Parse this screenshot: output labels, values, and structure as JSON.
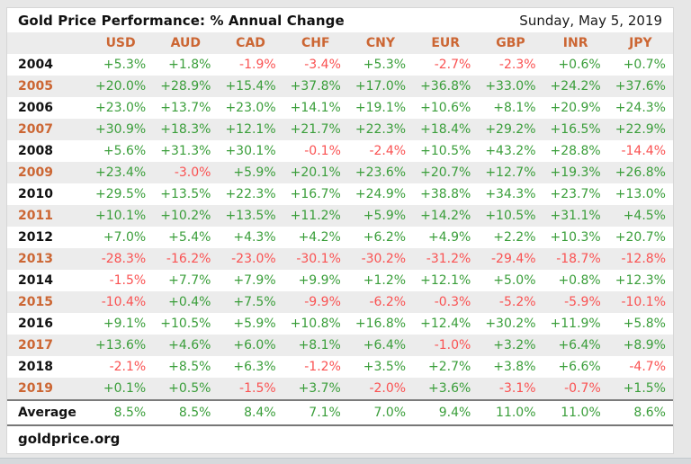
{
  "header": {
    "title": "Gold Price Performance: % Annual Change",
    "date": "Sunday, May 5, 2019"
  },
  "table": {
    "currencies": [
      "USD",
      "AUD",
      "CAD",
      "CHF",
      "CNY",
      "EUR",
      "GBP",
      "INR",
      "JPY"
    ],
    "rows": [
      {
        "year": "2004",
        "values": [
          "+5.3%",
          "+1.8%",
          "-1.9%",
          "-3.4%",
          "+5.3%",
          "-2.7%",
          "-2.3%",
          "+0.6%",
          "+0.7%"
        ]
      },
      {
        "year": "2005",
        "values": [
          "+20.0%",
          "+28.9%",
          "+15.4%",
          "+37.8%",
          "+17.0%",
          "+36.8%",
          "+33.0%",
          "+24.2%",
          "+37.6%"
        ]
      },
      {
        "year": "2006",
        "values": [
          "+23.0%",
          "+13.7%",
          "+23.0%",
          "+14.1%",
          "+19.1%",
          "+10.6%",
          "+8.1%",
          "+20.9%",
          "+24.3%"
        ]
      },
      {
        "year": "2007",
        "values": [
          "+30.9%",
          "+18.3%",
          "+12.1%",
          "+21.7%",
          "+22.3%",
          "+18.4%",
          "+29.2%",
          "+16.5%",
          "+22.9%"
        ]
      },
      {
        "year": "2008",
        "values": [
          "+5.6%",
          "+31.3%",
          "+30.1%",
          "-0.1%",
          "-2.4%",
          "+10.5%",
          "+43.2%",
          "+28.8%",
          "-14.4%"
        ]
      },
      {
        "year": "2009",
        "values": [
          "+23.4%",
          "-3.0%",
          "+5.9%",
          "+20.1%",
          "+23.6%",
          "+20.7%",
          "+12.7%",
          "+19.3%",
          "+26.8%"
        ]
      },
      {
        "year": "2010",
        "values": [
          "+29.5%",
          "+13.5%",
          "+22.3%",
          "+16.7%",
          "+24.9%",
          "+38.8%",
          "+34.3%",
          "+23.7%",
          "+13.0%"
        ]
      },
      {
        "year": "2011",
        "values": [
          "+10.1%",
          "+10.2%",
          "+13.5%",
          "+11.2%",
          "+5.9%",
          "+14.2%",
          "+10.5%",
          "+31.1%",
          "+4.5%"
        ]
      },
      {
        "year": "2012",
        "values": [
          "+7.0%",
          "+5.4%",
          "+4.3%",
          "+4.2%",
          "+6.2%",
          "+4.9%",
          "+2.2%",
          "+10.3%",
          "+20.7%"
        ]
      },
      {
        "year": "2013",
        "values": [
          "-28.3%",
          "-16.2%",
          "-23.0%",
          "-30.1%",
          "-30.2%",
          "-31.2%",
          "-29.4%",
          "-18.7%",
          "-12.8%"
        ]
      },
      {
        "year": "2014",
        "values": [
          "-1.5%",
          "+7.7%",
          "+7.9%",
          "+9.9%",
          "+1.2%",
          "+12.1%",
          "+5.0%",
          "+0.8%",
          "+12.3%"
        ]
      },
      {
        "year": "2015",
        "values": [
          "-10.4%",
          "+0.4%",
          "+7.5%",
          "-9.9%",
          "-6.2%",
          "-0.3%",
          "-5.2%",
          "-5.9%",
          "-10.1%"
        ]
      },
      {
        "year": "2016",
        "values": [
          "+9.1%",
          "+10.5%",
          "+5.9%",
          "+10.8%",
          "+16.8%",
          "+12.4%",
          "+30.2%",
          "+11.9%",
          "+5.8%"
        ]
      },
      {
        "year": "2017",
        "values": [
          "+13.6%",
          "+4.6%",
          "+6.0%",
          "+8.1%",
          "+6.4%",
          "-1.0%",
          "+3.2%",
          "+6.4%",
          "+8.9%"
        ]
      },
      {
        "year": "2018",
        "values": [
          "-2.1%",
          "+8.5%",
          "+6.3%",
          "-1.2%",
          "+3.5%",
          "+2.7%",
          "+3.8%",
          "+6.6%",
          "-4.7%"
        ]
      },
      {
        "year": "2019",
        "values": [
          "+0.1%",
          "+0.5%",
          "-1.5%",
          "+3.7%",
          "-2.0%",
          "+3.6%",
          "-3.1%",
          "-0.7%",
          "+1.5%"
        ]
      }
    ],
    "average": {
      "label": "Average",
      "values": [
        "8.5%",
        "8.5%",
        "8.4%",
        "7.1%",
        "7.0%",
        "9.4%",
        "11.0%",
        "11.0%",
        "8.6%"
      ]
    }
  },
  "footer": {
    "source": "goldprice.org"
  },
  "colors": {
    "accent_orange": "#cc6633",
    "positive_green": "#3a9e3a",
    "negative_red": "#fa5252",
    "stripe_gray": "#ececec"
  },
  "chart_data": {
    "type": "table",
    "title": "Gold Price Performance: % Annual Change",
    "subtitle": "Sunday, May 5, 2019",
    "columns": [
      "USD",
      "AUD",
      "CAD",
      "CHF",
      "CNY",
      "EUR",
      "GBP",
      "INR",
      "JPY"
    ],
    "unit": "% annual change",
    "rows": {
      "2004": [
        5.3,
        1.8,
        -1.9,
        -3.4,
        5.3,
        -2.7,
        -2.3,
        0.6,
        0.7
      ],
      "2005": [
        20.0,
        28.9,
        15.4,
        37.8,
        17.0,
        36.8,
        33.0,
        24.2,
        37.6
      ],
      "2006": [
        23.0,
        13.7,
        23.0,
        14.1,
        19.1,
        10.6,
        8.1,
        20.9,
        24.3
      ],
      "2007": [
        30.9,
        18.3,
        12.1,
        21.7,
        22.3,
        18.4,
        29.2,
        16.5,
        22.9
      ],
      "2008": [
        5.6,
        31.3,
        30.1,
        -0.1,
        -2.4,
        10.5,
        43.2,
        28.8,
        -14.4
      ],
      "2009": [
        23.4,
        -3.0,
        5.9,
        20.1,
        23.6,
        20.7,
        12.7,
        19.3,
        26.8
      ],
      "2010": [
        29.5,
        13.5,
        22.3,
        16.7,
        24.9,
        38.8,
        34.3,
        23.7,
        13.0
      ],
      "2011": [
        10.1,
        10.2,
        13.5,
        11.2,
        5.9,
        14.2,
        10.5,
        31.1,
        4.5
      ],
      "2012": [
        7.0,
        5.4,
        4.3,
        4.2,
        6.2,
        4.9,
        2.2,
        10.3,
        20.7
      ],
      "2013": [
        -28.3,
        -16.2,
        -23.0,
        -30.1,
        -30.2,
        -31.2,
        -29.4,
        -18.7,
        -12.8
      ],
      "2014": [
        -1.5,
        7.7,
        7.9,
        9.9,
        1.2,
        12.1,
        5.0,
        0.8,
        12.3
      ],
      "2015": [
        -10.4,
        0.4,
        7.5,
        -9.9,
        -6.2,
        -0.3,
        -5.2,
        -5.9,
        -10.1
      ],
      "2016": [
        9.1,
        10.5,
        5.9,
        10.8,
        16.8,
        12.4,
        30.2,
        11.9,
        5.8
      ],
      "2017": [
        13.6,
        4.6,
        6.0,
        8.1,
        6.4,
        -1.0,
        3.2,
        6.4,
        8.9
      ],
      "2018": [
        -2.1,
        8.5,
        6.3,
        -1.2,
        3.5,
        2.7,
        3.8,
        6.6,
        -4.7
      ],
      "2019": [
        0.1,
        0.5,
        -1.5,
        3.7,
        -2.0,
        3.6,
        -3.1,
        -0.7,
        1.5
      ]
    },
    "average": [
      8.5,
      8.5,
      8.4,
      7.1,
      7.0,
      9.4,
      11.0,
      11.0,
      8.6
    ],
    "value_color_rule": "positive=green, negative=red",
    "source": "goldprice.org"
  }
}
